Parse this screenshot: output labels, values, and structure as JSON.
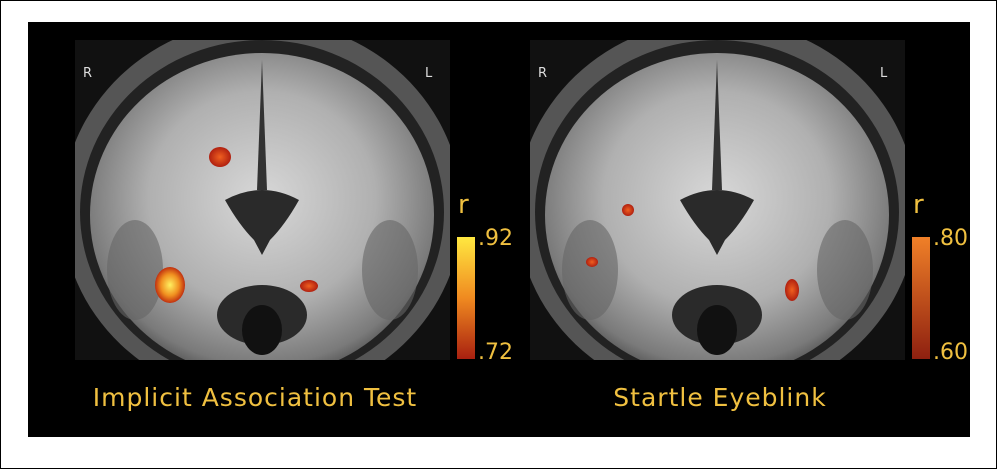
{
  "panels": [
    {
      "left_marker": "R",
      "right_marker": "L",
      "caption": "Implicit Association Test",
      "scale": {
        "label": "r",
        "top": ".92",
        "bottom": ".72"
      }
    },
    {
      "left_marker": "R",
      "right_marker": "L",
      "caption": "Startle Eyeblink",
      "scale": {
        "label": "r",
        "top": ".80",
        "bottom": ".60"
      }
    }
  ]
}
